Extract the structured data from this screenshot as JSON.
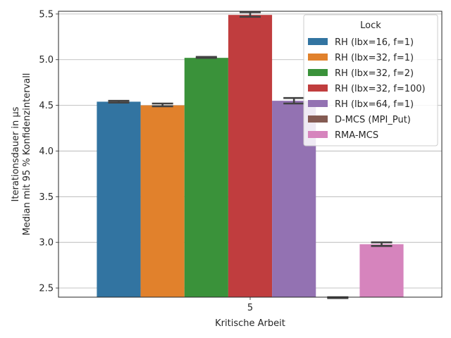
{
  "chart_data": {
    "type": "bar",
    "categories": [
      "5"
    ],
    "xlabel": "Kritische Arbeit",
    "ylabel_line1": "Iterationsdauer in µs",
    "ylabel_line2": "Median mit 95 % Konfidenzintervall",
    "ylim": [
      2.4,
      5.53
    ],
    "yticks": [
      "2.5",
      "3.0",
      "3.5",
      "4.0",
      "4.5",
      "5.0",
      "5.5"
    ],
    "grid": "horizontal",
    "legend": {
      "title": "Lock",
      "placement": "top-right"
    },
    "series": [
      {
        "name": "RH (lbx=16, f=1)",
        "values": [
          4.54
        ],
        "ci": [
          4.53,
          4.55
        ],
        "color": "#3274a1"
      },
      {
        "name": "RH (lbx=32, f=1)",
        "values": [
          4.5
        ],
        "ci": [
          4.49,
          4.52
        ],
        "color": "#e1812c"
      },
      {
        "name": "RH (lbx=32, f=2)",
        "values": [
          5.02
        ],
        "ci": [
          5.02,
          5.03
        ],
        "color": "#3a923a"
      },
      {
        "name": "RH (lbx=32, f=100)",
        "values": [
          5.49
        ],
        "ci": [
          5.47,
          5.52
        ],
        "color": "#c03d3e"
      },
      {
        "name": "RH (lbx=64, f=1)",
        "values": [
          4.55
        ],
        "ci": [
          4.52,
          4.58
        ],
        "color": "#9372b2"
      },
      {
        "name": "D-MCS (MPI_Put)",
        "values": [
          2.395
        ],
        "ci": [
          2.39,
          2.4
        ],
        "color": "#845b53"
      },
      {
        "name": "RMA-MCS",
        "values": [
          2.98
        ],
        "ci": [
          2.96,
          3.0
        ],
        "color": "#d684bd"
      }
    ]
  }
}
